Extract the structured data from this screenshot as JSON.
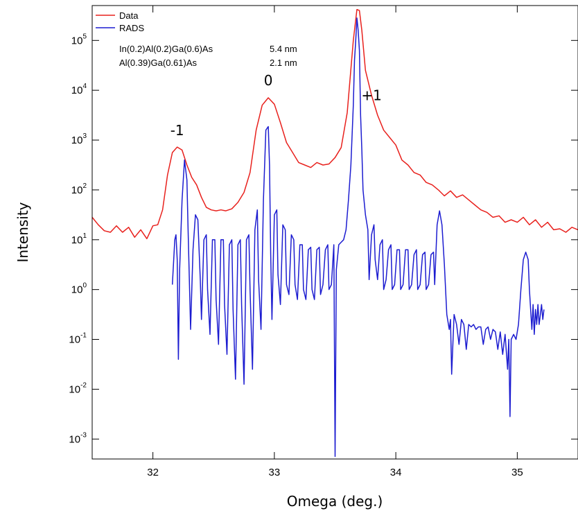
{
  "chart_data": {
    "type": "line",
    "xlabel": "Omega (deg.)",
    "ylabel": "Intensity",
    "xlim": [
      31.5,
      35.5
    ],
    "ylim_log10": [
      -3.4,
      5.7
    ],
    "y_scale": "log",
    "x_ticks": [
      {
        "value": 32,
        "label": "32"
      },
      {
        "value": 33,
        "label": "33"
      },
      {
        "value": 34,
        "label": "34"
      },
      {
        "value": 35,
        "label": "35"
      }
    ],
    "y_ticks": [
      {
        "exp": 5,
        "base": "10",
        "sup": "5"
      },
      {
        "exp": 4,
        "base": "10",
        "sup": "4"
      },
      {
        "exp": 3,
        "base": "10",
        "sup": "3"
      },
      {
        "exp": 2,
        "base": "10",
        "sup": "2"
      },
      {
        "exp": 1,
        "base": "10",
        "sup": "1"
      },
      {
        "exp": 0,
        "base": "10",
        "sup": "0"
      },
      {
        "exp": -1,
        "base": "10",
        "sup": "-1"
      },
      {
        "exp": -2,
        "base": "10",
        "sup": "-2"
      },
      {
        "exp": -3,
        "base": "10",
        "sup": "-3"
      }
    ],
    "legend": {
      "position": "top-left",
      "entries": [
        {
          "label": "Data",
          "color": "#e8201c"
        },
        {
          "label": "RADS",
          "color": "#1c1cd0"
        }
      ],
      "notes": [
        {
          "text": "In(0.2)Al(0.2)Ga(0.6)As",
          "value": "5.4 nm"
        },
        {
          "text": "Al(0.39)Ga(0.61)As",
          "value": "2.1 nm"
        }
      ]
    },
    "annotations": [
      {
        "text": "-1",
        "x": 32.2,
        "y_log10": 3.1
      },
      {
        "text": "0",
        "x": 32.95,
        "y_log10": 4.1
      },
      {
        "text": "+1",
        "x": 33.8,
        "y_log10": 3.8
      }
    ],
    "series": [
      {
        "name": "Data",
        "color": "#e8201c",
        "points": [
          [
            31.5,
            1.45
          ],
          [
            31.55,
            1.3
          ],
          [
            31.6,
            1.18
          ],
          [
            31.65,
            1.15
          ],
          [
            31.7,
            1.28
          ],
          [
            31.75,
            1.15
          ],
          [
            31.8,
            1.25
          ],
          [
            31.85,
            1.05
          ],
          [
            31.9,
            1.2
          ],
          [
            31.95,
            1.02
          ],
          [
            32.0,
            1.28
          ],
          [
            32.04,
            1.3
          ],
          [
            32.08,
            1.6
          ],
          [
            32.12,
            2.3
          ],
          [
            32.16,
            2.75
          ],
          [
            32.2,
            2.86
          ],
          [
            32.24,
            2.8
          ],
          [
            32.28,
            2.5
          ],
          [
            32.32,
            2.25
          ],
          [
            32.36,
            2.1
          ],
          [
            32.4,
            1.85
          ],
          [
            32.44,
            1.65
          ],
          [
            32.48,
            1.6
          ],
          [
            32.52,
            1.58
          ],
          [
            32.56,
            1.6
          ],
          [
            32.6,
            1.58
          ],
          [
            32.65,
            1.62
          ],
          [
            32.7,
            1.75
          ],
          [
            32.75,
            1.95
          ],
          [
            32.8,
            2.35
          ],
          [
            32.85,
            3.2
          ],
          [
            32.9,
            3.7
          ],
          [
            32.95,
            3.85
          ],
          [
            33.0,
            3.72
          ],
          [
            33.05,
            3.35
          ],
          [
            33.1,
            2.95
          ],
          [
            33.15,
            2.75
          ],
          [
            33.2,
            2.55
          ],
          [
            33.25,
            2.5
          ],
          [
            33.3,
            2.45
          ],
          [
            33.35,
            2.55
          ],
          [
            33.4,
            2.5
          ],
          [
            33.45,
            2.52
          ],
          [
            33.5,
            2.65
          ],
          [
            33.55,
            2.85
          ],
          [
            33.6,
            3.55
          ],
          [
            33.65,
            5.0
          ],
          [
            33.68,
            5.62
          ],
          [
            33.7,
            5.6
          ],
          [
            33.72,
            5.2
          ],
          [
            33.75,
            4.4
          ],
          [
            33.8,
            3.9
          ],
          [
            33.85,
            3.5
          ],
          [
            33.9,
            3.2
          ],
          [
            33.95,
            3.05
          ],
          [
            34.0,
            2.9
          ],
          [
            34.05,
            2.6
          ],
          [
            34.1,
            2.5
          ],
          [
            34.15,
            2.35
          ],
          [
            34.2,
            2.3
          ],
          [
            34.25,
            2.15
          ],
          [
            34.3,
            2.1
          ],
          [
            34.35,
            2.0
          ],
          [
            34.4,
            1.88
          ],
          [
            34.45,
            1.98
          ],
          [
            34.5,
            1.85
          ],
          [
            34.55,
            1.9
          ],
          [
            34.6,
            1.8
          ],
          [
            34.65,
            1.7
          ],
          [
            34.7,
            1.6
          ],
          [
            34.75,
            1.55
          ],
          [
            34.8,
            1.45
          ],
          [
            34.85,
            1.48
          ],
          [
            34.9,
            1.35
          ],
          [
            34.95,
            1.4
          ],
          [
            35.0,
            1.35
          ],
          [
            35.05,
            1.45
          ],
          [
            35.1,
            1.3
          ],
          [
            35.15,
            1.4
          ],
          [
            35.2,
            1.25
          ],
          [
            35.25,
            1.35
          ],
          [
            35.3,
            1.2
          ],
          [
            35.35,
            1.22
          ],
          [
            35.4,
            1.15
          ],
          [
            35.45,
            1.25
          ],
          [
            35.5,
            1.2
          ]
        ]
      },
      {
        "name": "RADS",
        "color": "#1c1cd0",
        "points": [
          [
            32.16,
            0.1
          ],
          [
            32.18,
            1.0
          ],
          [
            32.19,
            1.1
          ],
          [
            32.2,
            0.6
          ],
          [
            32.21,
            -1.4
          ],
          [
            32.22,
            0.4
          ],
          [
            32.24,
            1.8
          ],
          [
            32.26,
            2.6
          ],
          [
            32.28,
            2.2
          ],
          [
            32.29,
            1.2
          ],
          [
            32.31,
            -0.8
          ],
          [
            32.33,
            0.8
          ],
          [
            32.35,
            1.5
          ],
          [
            32.37,
            1.4
          ],
          [
            32.39,
            0.2
          ],
          [
            32.4,
            -0.6
          ],
          [
            32.42,
            1.0
          ],
          [
            32.44,
            1.1
          ],
          [
            32.45,
            0.0
          ],
          [
            32.47,
            -0.9
          ],
          [
            32.49,
            1.0
          ],
          [
            32.51,
            1.0
          ],
          [
            32.52,
            -0.2
          ],
          [
            32.54,
            -1.1
          ],
          [
            32.56,
            1.0
          ],
          [
            32.58,
            1.0
          ],
          [
            32.59,
            -0.3
          ],
          [
            32.61,
            -1.3
          ],
          [
            32.63,
            0.9
          ],
          [
            32.65,
            1.0
          ],
          [
            32.66,
            -0.4
          ],
          [
            32.68,
            -1.8
          ],
          [
            32.7,
            0.9
          ],
          [
            32.72,
            1.0
          ],
          [
            32.73,
            -0.3
          ],
          [
            32.75,
            -1.9
          ],
          [
            32.77,
            1.0
          ],
          [
            32.79,
            1.1
          ],
          [
            32.8,
            0.0
          ],
          [
            32.82,
            -1.6
          ],
          [
            32.84,
            1.2
          ],
          [
            32.86,
            1.6
          ],
          [
            32.87,
            0.2
          ],
          [
            32.89,
            -0.8
          ],
          [
            32.91,
            1.8
          ],
          [
            32.93,
            3.2
          ],
          [
            32.95,
            3.27
          ],
          [
            32.96,
            2.5
          ],
          [
            32.97,
            0.7
          ],
          [
            32.98,
            -0.6
          ],
          [
            33.0,
            1.5
          ],
          [
            33.02,
            1.6
          ],
          [
            33.03,
            0.3
          ],
          [
            33.05,
            -0.3
          ],
          [
            33.07,
            1.3
          ],
          [
            33.09,
            1.2
          ],
          [
            33.1,
            0.1
          ],
          [
            33.12,
            -0.1
          ],
          [
            33.14,
            1.1
          ],
          [
            33.16,
            1.0
          ],
          [
            33.17,
            0.1
          ],
          [
            33.19,
            -0.2
          ],
          [
            33.21,
            0.9
          ],
          [
            33.23,
            0.9
          ],
          [
            33.24,
            0.0
          ],
          [
            33.26,
            -0.2
          ],
          [
            33.28,
            0.8
          ],
          [
            33.3,
            0.85
          ],
          [
            33.31,
            0.0
          ],
          [
            33.33,
            -0.2
          ],
          [
            33.35,
            0.8
          ],
          [
            33.37,
            0.85
          ],
          [
            33.38,
            -0.1
          ],
          [
            33.4,
            0.1
          ],
          [
            33.42,
            0.8
          ],
          [
            33.44,
            0.9
          ],
          [
            33.45,
            0.0
          ],
          [
            33.47,
            0.1
          ],
          [
            33.49,
            0.9
          ],
          [
            33.5,
            -3.35
          ],
          [
            33.51,
            0.4
          ],
          [
            33.53,
            0.9
          ],
          [
            33.55,
            0.95
          ],
          [
            33.57,
            1.0
          ],
          [
            33.59,
            1.2
          ],
          [
            33.61,
            1.8
          ],
          [
            33.63,
            2.5
          ],
          [
            33.65,
            3.7
          ],
          [
            33.66,
            4.6
          ],
          [
            33.67,
            5.0
          ],
          [
            33.68,
            5.45
          ],
          [
            33.69,
            5.2
          ],
          [
            33.7,
            4.8
          ],
          [
            33.71,
            3.5
          ],
          [
            33.72,
            2.8
          ],
          [
            33.73,
            2.0
          ],
          [
            33.75,
            1.5
          ],
          [
            33.77,
            1.2
          ],
          [
            33.78,
            0.2
          ],
          [
            33.8,
            1.1
          ],
          [
            33.82,
            1.3
          ],
          [
            33.83,
            0.6
          ],
          [
            33.85,
            0.2
          ],
          [
            33.87,
            0.9
          ],
          [
            33.89,
            1.0
          ],
          [
            33.9,
            0.0
          ],
          [
            33.92,
            0.2
          ],
          [
            33.94,
            0.8
          ],
          [
            33.96,
            0.9
          ],
          [
            33.97,
            0.0
          ],
          [
            33.99,
            0.1
          ],
          [
            34.01,
            0.8
          ],
          [
            34.03,
            0.8
          ],
          [
            34.04,
            0.0
          ],
          [
            34.06,
            0.1
          ],
          [
            34.08,
            0.8
          ],
          [
            34.1,
            0.8
          ],
          [
            34.11,
            0.0
          ],
          [
            34.13,
            0.1
          ],
          [
            34.15,
            0.7
          ],
          [
            34.17,
            0.8
          ],
          [
            34.18,
            0.0
          ],
          [
            34.2,
            0.1
          ],
          [
            34.22,
            0.7
          ],
          [
            34.24,
            0.75
          ],
          [
            34.25,
            0.0
          ],
          [
            34.27,
            0.1
          ],
          [
            34.29,
            0.7
          ],
          [
            34.31,
            0.75
          ],
          [
            34.32,
            0.1
          ],
          [
            34.34,
            1.3
          ],
          [
            34.36,
            1.58
          ],
          [
            34.38,
            1.3
          ],
          [
            34.4,
            0.5
          ],
          [
            34.42,
            -0.5
          ],
          [
            34.44,
            -0.8
          ],
          [
            34.45,
            -0.6
          ],
          [
            34.46,
            -1.7
          ],
          [
            34.48,
            -0.5
          ],
          [
            34.5,
            -0.7
          ],
          [
            34.52,
            -1.1
          ],
          [
            34.54,
            -0.6
          ],
          [
            34.56,
            -0.7
          ],
          [
            34.58,
            -1.2
          ],
          [
            34.6,
            -0.7
          ],
          [
            34.62,
            -0.75
          ],
          [
            34.64,
            -0.7
          ],
          [
            34.66,
            -0.8
          ],
          [
            34.68,
            -0.75
          ],
          [
            34.7,
            -0.75
          ],
          [
            34.72,
            -1.1
          ],
          [
            34.74,
            -0.8
          ],
          [
            34.76,
            -0.75
          ],
          [
            34.78,
            -1.0
          ],
          [
            34.8,
            -0.8
          ],
          [
            34.82,
            -0.85
          ],
          [
            34.84,
            -1.2
          ],
          [
            34.86,
            -0.85
          ],
          [
            34.88,
            -1.3
          ],
          [
            34.9,
            -0.9
          ],
          [
            34.92,
            -1.6
          ],
          [
            34.93,
            -1.0
          ],
          [
            34.94,
            -2.55
          ],
          [
            34.95,
            -1.0
          ],
          [
            34.97,
            -0.9
          ],
          [
            34.99,
            -1.0
          ],
          [
            35.01,
            -0.7
          ],
          [
            35.03,
            0.0
          ],
          [
            35.05,
            0.6
          ],
          [
            35.07,
            0.75
          ],
          [
            35.09,
            0.6
          ],
          [
            35.1,
            0.0
          ],
          [
            35.12,
            -0.8
          ],
          [
            35.13,
            -0.3
          ],
          [
            35.14,
            -0.9
          ],
          [
            35.15,
            -0.4
          ],
          [
            35.16,
            -0.7
          ],
          [
            35.17,
            -0.3
          ],
          [
            35.18,
            -0.7
          ],
          [
            35.19,
            -0.5
          ],
          [
            35.2,
            -0.3
          ],
          [
            35.21,
            -0.6
          ],
          [
            35.22,
            -0.4
          ]
        ]
      }
    ]
  }
}
